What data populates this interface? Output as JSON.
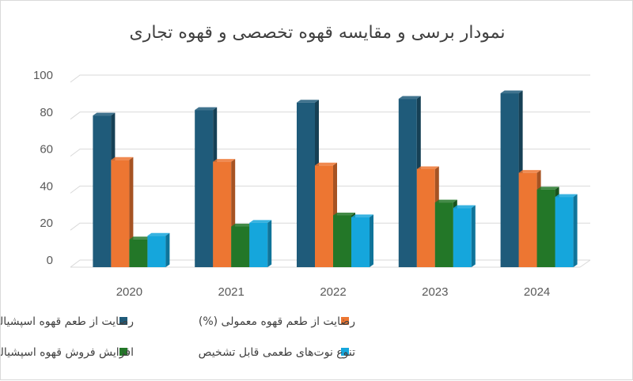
{
  "chart_data": {
    "type": "bar",
    "title": "نمودار برسی و مقایسه قهوه تخصصی و قهوه تجاری",
    "categories": [
      "2020",
      "2021",
      "2022",
      "2023",
      "2024"
    ],
    "ylim": [
      0,
      100
    ],
    "yticks": [
      0,
      20,
      40,
      60,
      80,
      100
    ],
    "ytick_labels": [
      "0",
      "20",
      "40",
      "60",
      "80",
      "100"
    ],
    "grid": true,
    "legend_position": "bottom",
    "series": [
      {
        "name": "رضایت از طعم قهوه اسپشیالتی (%)",
        "values": [
          82,
          85,
          89,
          91,
          94
        ],
        "color": "#1f5b7a"
      },
      {
        "name": "رضایت از طعم قهوه معمولی (%)",
        "values": [
          58,
          57,
          55,
          53,
          51
        ],
        "color": "#ed7632"
      },
      {
        "name": "افزایش فروش قهوه اسپشیالتی (%)",
        "values": [
          15,
          22,
          28,
          35,
          42
        ],
        "color": "#237728"
      },
      {
        "name": "تنوع نوت‌های طعمی قابل تشخیص",
        "values": [
          17,
          24,
          27,
          32,
          38
        ],
        "color": "#15a6dc"
      }
    ]
  }
}
